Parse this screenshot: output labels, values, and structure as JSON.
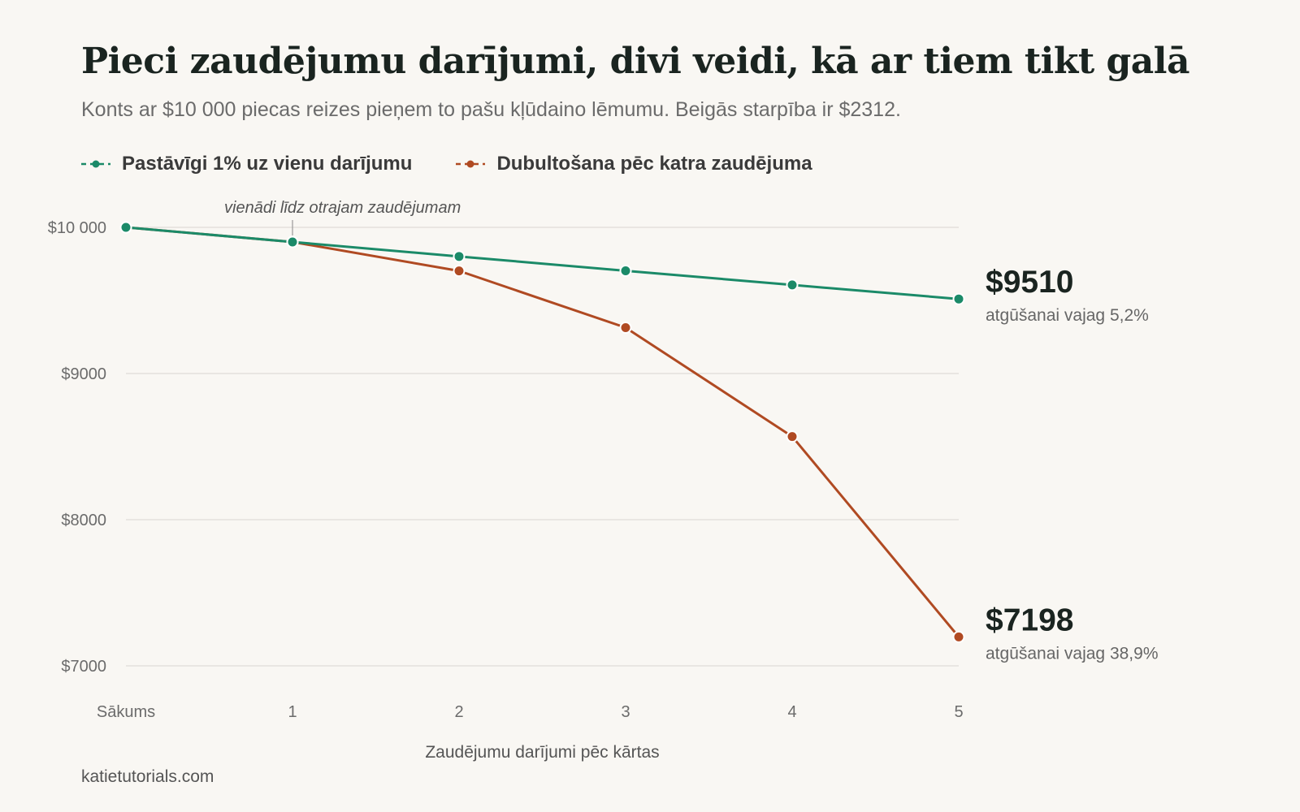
{
  "header": {
    "title": "Pieci zaudējumu darījumi, divi veidi, kā ar tiem tikt galā",
    "subtitle": "Konts ar $10 000 piecas reizes pieņem to pašu kļūdaino lēmumu. Beigās starpība ir $2312."
  },
  "legend": [
    {
      "label": "Pastāvīgi 1% uz vienu darījumu",
      "color": "#1b8a68"
    },
    {
      "label": "Dubultošana pēc katra zaudējuma",
      "color": "#b04a22"
    }
  ],
  "source": "katietutorials.com",
  "chart_data": {
    "type": "line",
    "categories": [
      "Sākums",
      "1",
      "2",
      "3",
      "4",
      "5"
    ],
    "xlabel": "Zaudējumu darījumi pēc kārtas",
    "ylim": [
      7000,
      10000
    ],
    "yticks": [
      {
        "value": 10000,
        "label": "$10 000"
      },
      {
        "value": 9000,
        "label": "$9000"
      },
      {
        "value": 8000,
        "label": "$8000"
      },
      {
        "value": 7000,
        "label": "$7000"
      }
    ],
    "grid": true,
    "series": [
      {
        "name": "Pastāvīgi 1% uz vienu darījumu",
        "color": "#1b8a68",
        "values": [
          10000,
          9900,
          9801,
          9703,
          9606,
          9510
        ],
        "end_label": "$9510",
        "end_sublabel": "atgūšanai vajag 5,2%"
      },
      {
        "name": "Dubultošana pēc katra zaudējuma",
        "color": "#b04a22",
        "values": [
          10000,
          9900,
          9702,
          9314,
          8569,
          7198
        ],
        "end_label": "$7198",
        "end_sublabel": "atgūšanai vajag 38,9%"
      }
    ],
    "annotation": {
      "text": "vienādi līdz otrajam zaudējumam",
      "category_index": 1
    }
  }
}
